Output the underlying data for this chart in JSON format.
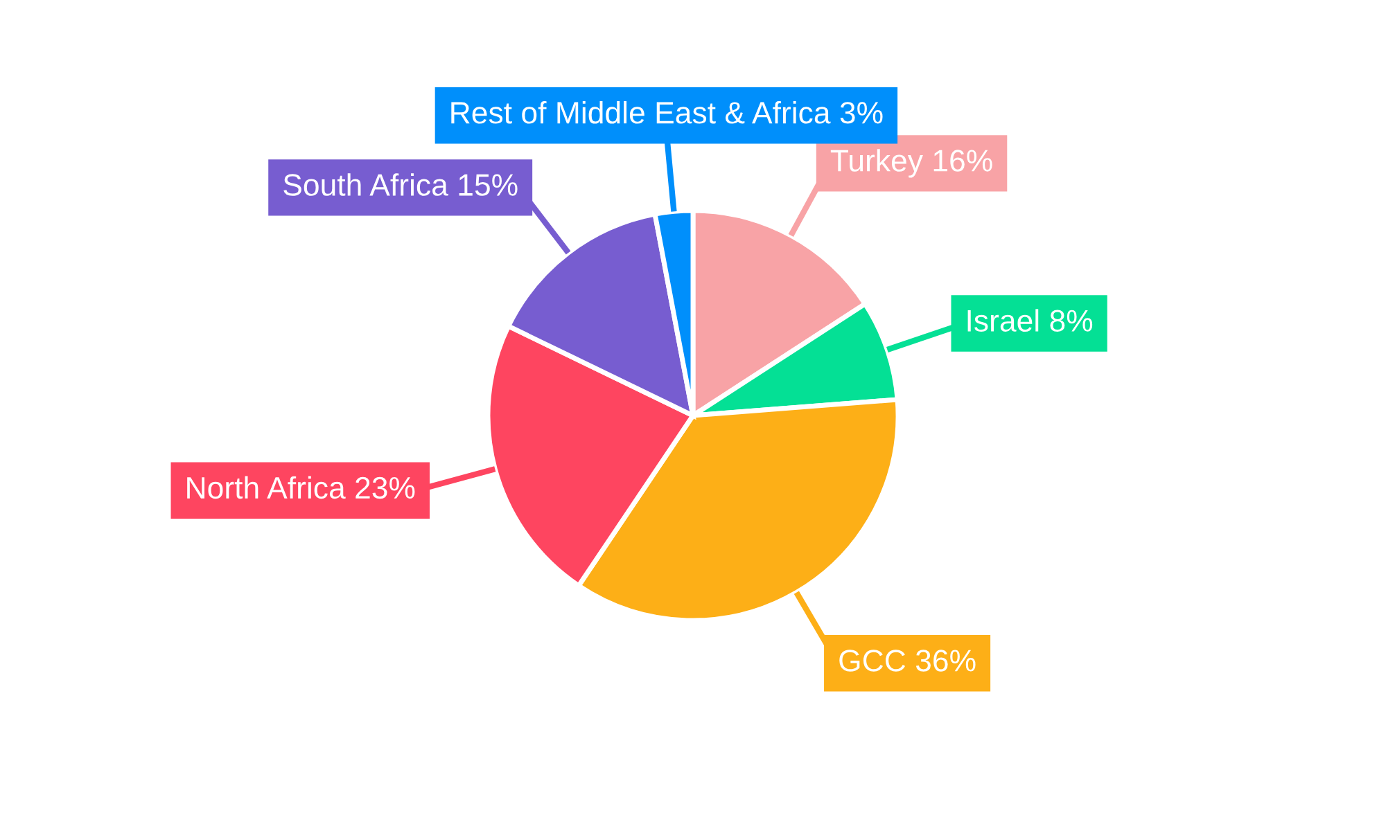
{
  "chart_data": {
    "type": "pie",
    "categories": [
      "Turkey",
      "Israel",
      "GCC",
      "North Africa",
      "South Africa",
      "Rest of Middle East & Africa"
    ],
    "values": [
      16,
      8,
      36,
      23,
      15,
      3
    ],
    "colors": [
      "#f8a3a6",
      "#04e095",
      "#fdaf17",
      "#fe4560",
      "#775dd0",
      "#008ffb"
    ],
    "value_labels": [
      "16%",
      "8%",
      "36%",
      "23%",
      "15%",
      "3%"
    ]
  }
}
